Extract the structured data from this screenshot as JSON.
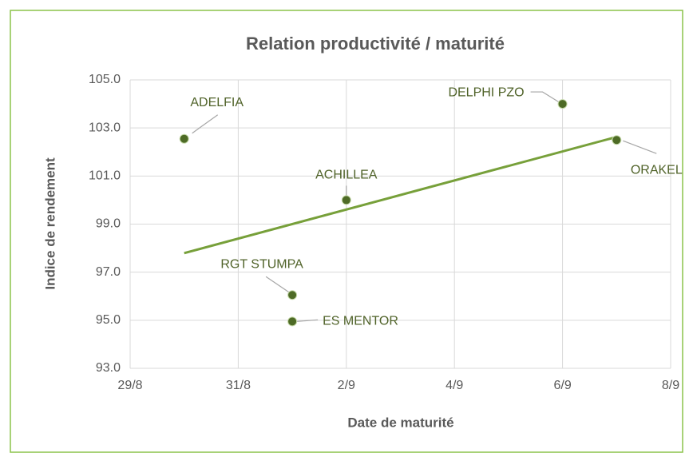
{
  "chart_data": {
    "type": "scatter",
    "title": "Relation productivité / maturité",
    "x_label": "Date de maturité",
    "y_label": "Indice de rendement",
    "x": [
      "30/8",
      "1/9",
      "1/9",
      "2/9",
      "6/9",
      "7/9"
    ],
    "values": [
      102.55,
      96.05,
      94.95,
      100.0,
      104.0,
      102.5
    ],
    "point_labels": [
      "ADELFIA",
      "RGT STUMPA",
      "ES MENTOR",
      "ACHILLEA",
      "DELPHI PZO",
      "ORAKEL"
    ],
    "color": "#4e6b26",
    "trendline": true,
    "trendline_color": "#77a03a",
    "xlim": [
      "29/8",
      "8/9"
    ],
    "xticks": [
      "29/8",
      "31/8",
      "2/9",
      "4/9",
      "6/9",
      "8/9"
    ],
    "ylim": [
      93,
      105
    ],
    "yticks": [
      {
        "value": 93,
        "label": "93.0"
      },
      {
        "value": 95,
        "label": "95.0"
      },
      {
        "value": 97,
        "label": "97.0"
      },
      {
        "value": 99,
        "label": "99.0"
      },
      {
        "value": 101,
        "label": "101.0"
      },
      {
        "value": 103,
        "label": "103.0"
      },
      {
        "value": 105,
        "label": "105.0"
      }
    ],
    "grid": true
  }
}
